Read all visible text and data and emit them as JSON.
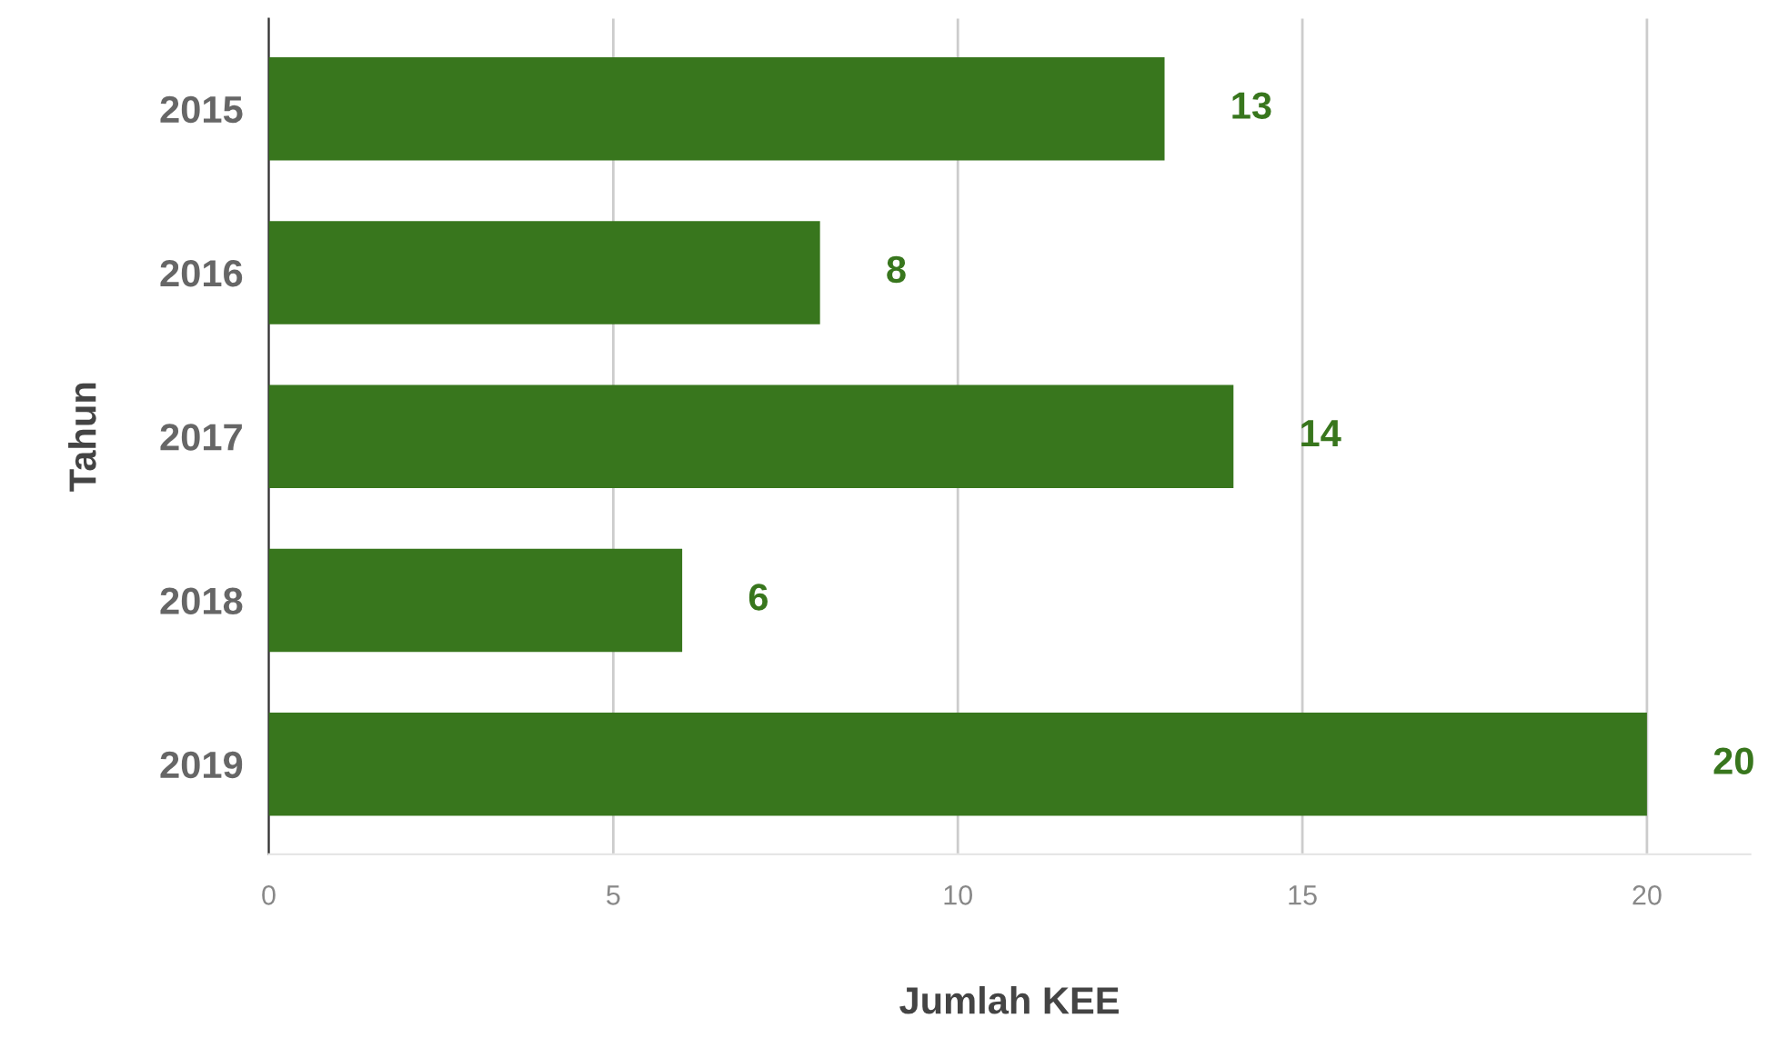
{
  "chart_data": {
    "type": "bar",
    "orientation": "horizontal",
    "xlabel": "Jumlah KEE",
    "ylabel": "Tahun",
    "categories": [
      "2015",
      "2016",
      "2017",
      "2018",
      "2019"
    ],
    "values": [
      13,
      8,
      14,
      6,
      20
    ],
    "color": "#38761d",
    "data_labels": true,
    "xlim": [
      0,
      21.5
    ],
    "xticks": [
      0,
      5,
      10,
      15,
      20
    ],
    "grid": "x",
    "legend": false
  }
}
